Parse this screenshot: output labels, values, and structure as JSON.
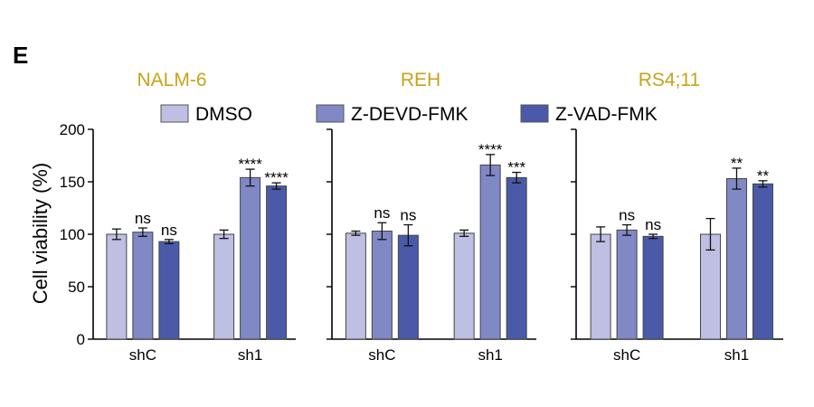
{
  "figure": {
    "panel_letter": "E",
    "ylabel": "Cell viability (%)",
    "title_color": "#c8a21a",
    "legend": [
      {
        "label": "DMSO",
        "color": "#bebfe2"
      },
      {
        "label": "Z-DEVD-FMK",
        "color": "#8088c6"
      },
      {
        "label": "Z-VAD-FMK",
        "color": "#4a5aa8"
      }
    ]
  },
  "chart_data": [
    {
      "type": "bar",
      "title": "NALM-6",
      "categories": [
        "shC",
        "sh1"
      ],
      "ylim": [
        0,
        200
      ],
      "yticks": [
        0,
        50,
        100,
        150,
        200
      ],
      "series": [
        {
          "name": "DMSO",
          "values": [
            100,
            100
          ],
          "errors": [
            5,
            4
          ],
          "labels": [
            "",
            ""
          ]
        },
        {
          "name": "Z-DEVD-FMK",
          "values": [
            102,
            154
          ],
          "errors": [
            4,
            8
          ],
          "labels": [
            "ns",
            "****"
          ]
        },
        {
          "name": "Z-VAD-FMK",
          "values": [
            93,
            146
          ],
          "errors": [
            2,
            3
          ],
          "labels": [
            "ns",
            "****"
          ]
        }
      ]
    },
    {
      "type": "bar",
      "title": "REH",
      "categories": [
        "shC",
        "sh1"
      ],
      "ylim": [
        0,
        200
      ],
      "yticks": [
        0,
        50,
        100,
        150,
        200
      ],
      "series": [
        {
          "name": "DMSO",
          "values": [
            101,
            101
          ],
          "errors": [
            2,
            3
          ],
          "labels": [
            "",
            ""
          ]
        },
        {
          "name": "Z-DEVD-FMK",
          "values": [
            103,
            166
          ],
          "errors": [
            8,
            10
          ],
          "labels": [
            "ns",
            "****"
          ]
        },
        {
          "name": "Z-VAD-FMK",
          "values": [
            99,
            154
          ],
          "errors": [
            10,
            5
          ],
          "labels": [
            "ns",
            "***"
          ]
        }
      ]
    },
    {
      "type": "bar",
      "title": "RS4;11",
      "categories": [
        "shC",
        "sh1"
      ],
      "ylim": [
        0,
        200
      ],
      "yticks": [
        0,
        50,
        100,
        150,
        200
      ],
      "series": [
        {
          "name": "DMSO",
          "values": [
            100,
            100
          ],
          "errors": [
            7,
            15
          ],
          "labels": [
            "",
            ""
          ]
        },
        {
          "name": "Z-DEVD-FMK",
          "values": [
            104,
            153
          ],
          "errors": [
            5,
            10
          ],
          "labels": [
            "ns",
            "**"
          ]
        },
        {
          "name": "Z-VAD-FMK",
          "values": [
            98,
            148
          ],
          "errors": [
            2,
            3
          ],
          "labels": [
            "ns",
            "**"
          ]
        }
      ]
    }
  ]
}
